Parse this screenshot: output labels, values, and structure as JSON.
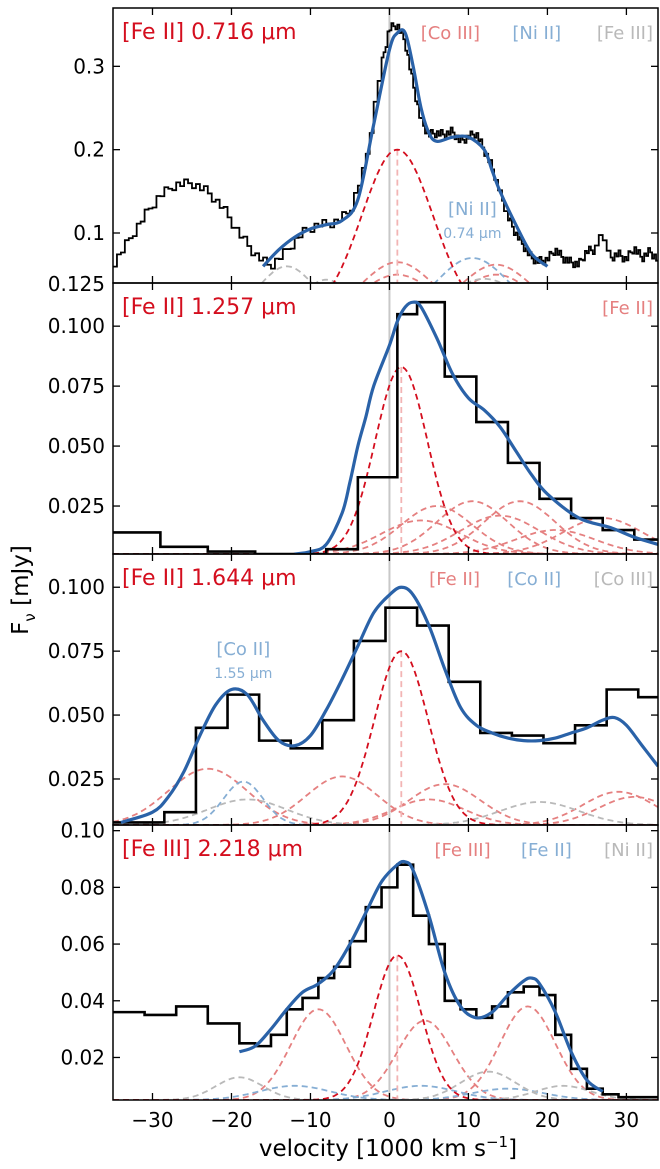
{
  "figure": {
    "xlabel": "velocity [1000 km s",
    "xlabel_sup": "−1",
    "xlabel_end": "]",
    "ylabel": "F",
    "ylabel_sub": "ν",
    "ylabel_end": " [mJy]",
    "xlim": [
      -35,
      34
    ],
    "xticks": [
      "−30",
      "−20",
      "−10",
      "0",
      "10",
      "20",
      "30"
    ],
    "xtick_values": [
      -30,
      -20,
      -10,
      0,
      10,
      20,
      30
    ]
  },
  "colors": {
    "data": "#000000",
    "fit": "#2a62a8",
    "main": "#d40e1e",
    "comp_red": "#e58080",
    "comp_blue": "#86aed4",
    "comp_grey": "#b9b9b9",
    "zero_line": "#c8c8c8"
  },
  "chart_data": [
    {
      "type": "line",
      "title": "[Fe II] 0.716 μm",
      "ylim": [
        0.04,
        0.37
      ],
      "yticks": [
        0.1,
        0.2,
        0.3
      ],
      "ytick_labels": [
        "0.1",
        "0.2",
        "0.3"
      ],
      "legend": [
        {
          "label": "[Co III]",
          "color": "comp_red"
        },
        {
          "label": "[Ni II]",
          "color": "comp_blue"
        },
        {
          "label": "[Fe III]",
          "color": "comp_grey"
        }
      ],
      "annotation": {
        "label": "[Ni II]",
        "sublabel": "0.74 μm",
        "x": 10.5,
        "y": 0.105
      },
      "main_center": 1,
      "series": [
        {
          "role": "data",
          "x": [
            -35,
            -33,
            -31,
            -29,
            -27,
            -25,
            -23,
            -21,
            -19,
            -17,
            -15,
            -13,
            -11,
            -9,
            -7,
            -5,
            -3,
            -1,
            0,
            1,
            2,
            3,
            4,
            5,
            6,
            7,
            8,
            9,
            10,
            11,
            12,
            13,
            14,
            15,
            16,
            17,
            18,
            19,
            20,
            21,
            22,
            23,
            24,
            25,
            26,
            27,
            28,
            29,
            30,
            31,
            32,
            33,
            34
          ],
          "values": [
            0.061,
            0.09,
            0.12,
            0.145,
            0.158,
            0.16,
            0.15,
            0.13,
            0.1,
            0.075,
            0.06,
            0.078,
            0.1,
            0.11,
            0.112,
            0.125,
            0.18,
            0.3,
            0.345,
            0.35,
            0.33,
            0.28,
            0.235,
            0.218,
            0.22,
            0.218,
            0.222,
            0.21,
            0.215,
            0.22,
            0.2,
            0.18,
            0.15,
            0.12,
            0.1,
            0.085,
            0.07,
            0.066,
            0.068,
            0.08,
            0.07,
            0.065,
            0.062,
            0.078,
            0.08,
            0.1,
            0.07,
            0.075,
            0.068,
            0.082,
            0.07,
            0.078,
            0.068
          ]
        },
        {
          "role": "fit",
          "x": [
            -16,
            -14,
            -12,
            -10,
            -8,
            -6,
            -4,
            -2,
            0,
            1,
            2,
            3,
            4,
            5,
            6,
            8,
            10,
            12,
            13,
            14,
            16,
            18,
            20
          ],
          "values": [
            0.06,
            0.08,
            0.095,
            0.105,
            0.11,
            0.115,
            0.14,
            0.23,
            0.32,
            0.34,
            0.34,
            0.3,
            0.25,
            0.22,
            0.21,
            0.215,
            0.215,
            0.2,
            0.175,
            0.15,
            0.11,
            0.075,
            0.06
          ]
        },
        {
          "role": "main",
          "gauss": [
            1,
            0.2,
            4.5,
            0
          ]
        },
        {
          "role": "comp",
          "color": "comp_red",
          "gauss": [
            1,
            0.065,
            4.5,
            0
          ]
        },
        {
          "role": "comp",
          "color": "comp_red",
          "gauss": [
            1,
            0.05,
            4.5,
            0
          ]
        },
        {
          "role": "comp",
          "color": "comp_red",
          "gauss": [
            13.5,
            0.062,
            4.5,
            0
          ]
        },
        {
          "role": "comp",
          "color": "comp_red",
          "gauss": [
            13.5,
            0.05,
            4.5,
            0
          ]
        },
        {
          "role": "comp",
          "color": "comp_blue",
          "gauss": [
            10.5,
            0.07,
            4.5,
            0
          ]
        },
        {
          "role": "comp",
          "color": "comp_blue",
          "gauss": [
            12.5,
            0.03,
            4.5,
            0
          ]
        },
        {
          "role": "comp",
          "color": "comp_grey",
          "gauss": [
            -13,
            0.06,
            3.5,
            0
          ]
        },
        {
          "role": "comp",
          "color": "comp_grey",
          "gauss": [
            -8,
            0.044,
            3,
            0
          ]
        },
        {
          "role": "comp",
          "color": "comp_grey",
          "gauss": [
            1,
            0.035,
            4.5,
            0
          ]
        },
        {
          "role": "comp",
          "color": "comp_grey",
          "gauss": [
            12,
            0.045,
            4.5,
            0
          ]
        }
      ]
    },
    {
      "type": "line",
      "title": "[Fe II] 1.257 μm",
      "ylim": [
        0.005,
        0.118
      ],
      "yticks": [
        0.025,
        0.05,
        0.075,
        0.1
      ],
      "ytick_labels": [
        "0.025",
        "0.050",
        "0.075",
        "0.100"
      ],
      "legend": [
        {
          "label": "[Fe II]",
          "color": "comp_red"
        }
      ],
      "main_center": 1.5,
      "series": [
        {
          "role": "data",
          "step": true,
          "x": [
            -35,
            -29,
            -23,
            -17,
            -12,
            -8,
            -4,
            1,
            3.5,
            7,
            11,
            15,
            19,
            23,
            27,
            31,
            34
          ],
          "values": [
            0.014,
            0.008,
            0.006,
            0.005,
            0.005,
            0.007,
            0.037,
            0.105,
            0.11,
            0.079,
            0.06,
            0.043,
            0.028,
            0.02,
            0.015,
            0.011,
            0.011
          ]
        },
        {
          "role": "fit",
          "x": [
            -12,
            -10,
            -8,
            -6,
            -5,
            -4,
            -3,
            -2,
            0,
            1,
            2,
            3,
            4,
            6,
            8,
            10,
            12,
            14,
            16,
            18,
            20,
            24,
            28,
            31,
            34
          ],
          "values": [
            0.005,
            0.006,
            0.009,
            0.022,
            0.035,
            0.05,
            0.062,
            0.075,
            0.092,
            0.102,
            0.108,
            0.11,
            0.108,
            0.095,
            0.08,
            0.07,
            0.065,
            0.058,
            0.048,
            0.038,
            0.03,
            0.02,
            0.016,
            0.012,
            0.009
          ]
        },
        {
          "role": "main",
          "gauss": [
            1.5,
            0.078,
            3.3,
            0.005
          ]
        },
        {
          "role": "comp",
          "color": "comp_red",
          "gauss": [
            6,
            0.02,
            4.5,
            0.005
          ]
        },
        {
          "role": "comp",
          "color": "comp_red",
          "gauss": [
            10.5,
            0.022,
            4.5,
            0.005
          ]
        },
        {
          "role": "comp",
          "color": "comp_red",
          "gauss": [
            16.5,
            0.022,
            4.5,
            0.005
          ]
        },
        {
          "role": "comp",
          "color": "comp_red",
          "gauss": [
            27,
            0.015,
            5,
            0.005
          ]
        },
        {
          "role": "comp",
          "color": "comp_red",
          "gauss": [
            4,
            0.014,
            5,
            0.005
          ]
        },
        {
          "role": "comp",
          "color": "comp_red",
          "gauss": [
            14,
            0.016,
            5,
            0.005
          ]
        },
        {
          "role": "comp",
          "color": "comp_red",
          "gauss": [
            21,
            0.01,
            5,
            0.005
          ]
        }
      ]
    },
    {
      "type": "line",
      "title": "[Fe II] 1.644 μm",
      "ylim": [
        0.007,
        0.113
      ],
      "yticks": [
        0.025,
        0.05,
        0.075,
        0.1
      ],
      "ytick_labels": [
        "0.025",
        "0.050",
        "0.075",
        "0.100"
      ],
      "legend": [
        {
          "label": "[Fe II]",
          "color": "comp_red"
        },
        {
          "label": "[Co II]",
          "color": "comp_blue"
        },
        {
          "label": "[Co III]",
          "color": "comp_grey"
        }
      ],
      "annotation": {
        "label": "[Co II]",
        "sublabel": "1.55 μm",
        "x": -18.5,
        "y": 0.068
      },
      "main_center": 1.5,
      "series": [
        {
          "role": "data",
          "step": true,
          "x": [
            -35,
            -28.5,
            -24.5,
            -20.5,
            -16.5,
            -12.5,
            -8.5,
            -4.5,
            -0.5,
            3.5,
            7.5,
            11.5,
            15.5,
            19.5,
            23.5,
            27.5,
            31.5,
            34
          ],
          "values": [
            0.008,
            0.012,
            0.045,
            0.058,
            0.04,
            0.037,
            0.048,
            0.079,
            0.092,
            0.085,
            0.063,
            0.043,
            0.042,
            0.039,
            0.046,
            0.06,
            0.057,
            0.03
          ]
        },
        {
          "role": "fit",
          "x": [
            -34,
            -30,
            -28,
            -26,
            -24,
            -22,
            -20,
            -18,
            -16,
            -14,
            -12,
            -10,
            -8,
            -6,
            -4,
            -2,
            0,
            1.5,
            3,
            5,
            7,
            9,
            11,
            13,
            15,
            17,
            19,
            21,
            23,
            25,
            27,
            28.5,
            30,
            32,
            34
          ],
          "values": [
            0.008,
            0.012,
            0.018,
            0.028,
            0.042,
            0.054,
            0.06,
            0.058,
            0.048,
            0.04,
            0.038,
            0.042,
            0.052,
            0.064,
            0.077,
            0.09,
            0.097,
            0.1,
            0.097,
            0.085,
            0.068,
            0.053,
            0.046,
            0.043,
            0.041,
            0.04,
            0.04,
            0.041,
            0.043,
            0.045,
            0.048,
            0.049,
            0.046,
            0.038,
            0.03
          ]
        },
        {
          "role": "main",
          "gauss": [
            1.5,
            0.068,
            3.4,
            0.007
          ]
        },
        {
          "role": "comp",
          "color": "comp_red",
          "gauss": [
            -23,
            0.022,
            5,
            0.007
          ]
        },
        {
          "role": "comp",
          "color": "comp_red",
          "gauss": [
            -6,
            0.019,
            4.5,
            0.007
          ]
        },
        {
          "role": "comp",
          "color": "comp_red",
          "gauss": [
            5,
            0.01,
            4.5,
            0.007
          ]
        },
        {
          "role": "comp",
          "color": "comp_red",
          "gauss": [
            7,
            0.016,
            4.5,
            0.007
          ]
        },
        {
          "role": "comp",
          "color": "comp_red",
          "gauss": [
            29,
            0.013,
            4.5,
            0.007
          ]
        },
        {
          "role": "comp",
          "color": "comp_red",
          "gauss": [
            31,
            0.011,
            4.5,
            0.007
          ]
        },
        {
          "role": "comp",
          "color": "comp_blue",
          "gauss": [
            -18.5,
            0.017,
            2.5,
            0.007
          ]
        },
        {
          "role": "comp",
          "color": "comp_grey",
          "gauss": [
            -18,
            0.01,
            5,
            0.007
          ]
        },
        {
          "role": "comp",
          "color": "comp_grey",
          "gauss": [
            19,
            0.009,
            5,
            0.007
          ]
        }
      ]
    },
    {
      "type": "line",
      "title": "[Fe III] 2.218 μm",
      "ylim": [
        0.005,
        0.102
      ],
      "yticks": [
        0.02,
        0.04,
        0.06,
        0.08,
        0.1
      ],
      "ytick_labels": [
        "0.02",
        "0.04",
        "0.06",
        "0.08",
        "0.10"
      ],
      "legend": [
        {
          "label": "[Fe III]",
          "color": "comp_red"
        },
        {
          "label": "[Fe II]",
          "color": "comp_blue"
        },
        {
          "label": "[Ni II]",
          "color": "comp_grey"
        }
      ],
      "main_center": 1,
      "series": [
        {
          "role": "data",
          "step": true,
          "x": [
            -35,
            -31,
            -27,
            -23,
            -19,
            -17,
            -15,
            -13,
            -11,
            -9,
            -7,
            -5,
            -3,
            -1,
            1,
            3,
            5,
            7,
            9,
            11,
            13,
            15,
            17,
            19,
            21,
            23,
            25,
            27,
            29,
            31,
            34
          ],
          "values": [
            0.036,
            0.035,
            0.038,
            0.032,
            0.025,
            0.024,
            0.028,
            0.037,
            0.041,
            0.048,
            0.052,
            0.061,
            0.073,
            0.08,
            0.088,
            0.07,
            0.06,
            0.04,
            0.037,
            0.034,
            0.038,
            0.043,
            0.045,
            0.042,
            0.028,
            0.016,
            0.009,
            0.007,
            0.006,
            0.006,
            0.006
          ]
        },
        {
          "role": "fit",
          "x": [
            -19,
            -17,
            -15,
            -13,
            -11,
            -9,
            -7,
            -5,
            -3,
            -1,
            1,
            2,
            3,
            5,
            7,
            9,
            11,
            13,
            15,
            17,
            18,
            19,
            21,
            23,
            25,
            27
          ],
          "values": [
            0.022,
            0.024,
            0.03,
            0.037,
            0.043,
            0.046,
            0.051,
            0.06,
            0.071,
            0.082,
            0.088,
            0.089,
            0.086,
            0.07,
            0.05,
            0.038,
            0.034,
            0.036,
            0.042,
            0.047,
            0.048,
            0.046,
            0.036,
            0.022,
            0.012,
            0.008
          ]
        },
        {
          "role": "main",
          "gauss": [
            1,
            0.051,
            3,
            0.005
          ]
        },
        {
          "role": "comp",
          "color": "comp_red",
          "gauss": [
            -9,
            0.032,
            3.5,
            0.005
          ]
        },
        {
          "role": "comp",
          "color": "comp_red",
          "gauss": [
            4.5,
            0.028,
            3.5,
            0.005
          ]
        },
        {
          "role": "comp",
          "color": "comp_red",
          "gauss": [
            17.5,
            0.033,
            3.5,
            0.005
          ]
        },
        {
          "role": "comp",
          "color": "comp_blue",
          "gauss": [
            -12,
            0.005,
            4.5,
            0.005
          ]
        },
        {
          "role": "comp",
          "color": "comp_blue",
          "gauss": [
            4,
            0.005,
            4.5,
            0.005
          ]
        },
        {
          "role": "comp",
          "color": "comp_blue",
          "gauss": [
            15,
            0.004,
            4.5,
            0.005
          ]
        },
        {
          "role": "comp",
          "color": "comp_grey",
          "gauss": [
            -19,
            0.008,
            3,
            0.005
          ]
        },
        {
          "role": "comp",
          "color": "comp_grey",
          "gauss": [
            12.5,
            0.01,
            3.5,
            0.005
          ]
        },
        {
          "role": "comp",
          "color": "comp_grey",
          "gauss": [
            22,
            0.005,
            3.5,
            0.005
          ]
        }
      ]
    }
  ]
}
